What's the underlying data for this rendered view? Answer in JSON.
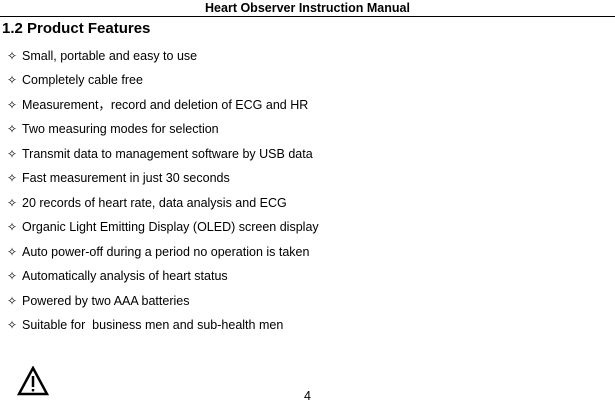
{
  "header": {
    "title": "Heart Observer Instruction Manual"
  },
  "section": {
    "heading": "1.2 Product Features",
    "bullet_icon": "four-pointed-star-outline",
    "items": [
      "Small, portable and easy to use",
      "Completely cable free",
      "Measurement，record and deletion of ECG and HR",
      "Two measuring modes for selection",
      "Transmit data to management software by USB data",
      "Fast measurement in just 30 seconds",
      "20 records of heart rate, data analysis and ECG",
      "Organic Light Emitting Display (OLED) screen display",
      "Auto power-off during a period no operation is taken",
      "Automatically analysis of heart status",
      "Powered by two AAA batteries",
      "Suitable for  business men and sub-health men"
    ]
  },
  "footer": {
    "page_number": "4",
    "warning_icon": "warning-triangle"
  }
}
